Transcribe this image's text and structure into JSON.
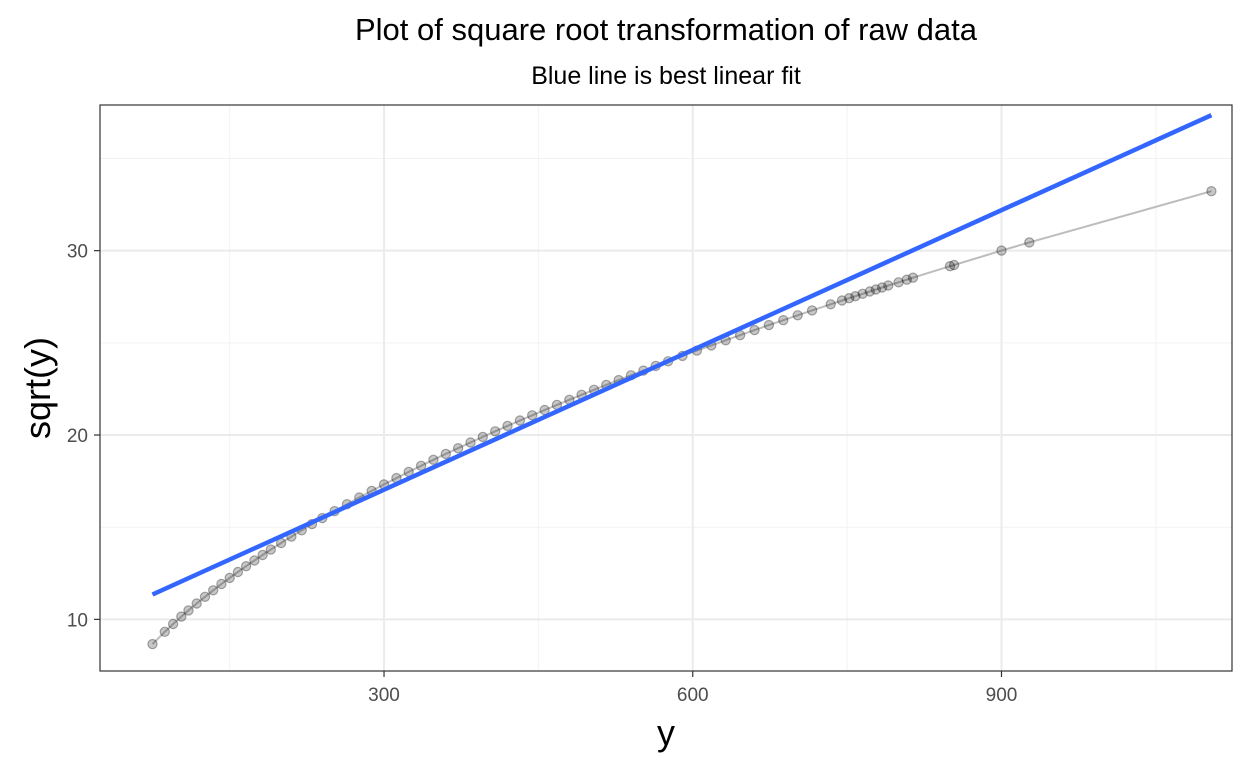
{
  "chart_data": {
    "type": "scatter",
    "title": "Plot of square root transformation of raw data",
    "subtitle": "Blue line is best linear fit",
    "xlabel": "y",
    "ylabel": "sqrt(y)",
    "xlim": [
      24,
      1124
    ],
    "ylim": [
      7.2,
      37.9
    ],
    "x_ticks": [
      300,
      600,
      900
    ],
    "x_tick_labels": [
      "300",
      "600",
      "900"
    ],
    "x_minor_ticks": [
      150,
      450,
      750,
      1050
    ],
    "y_ticks": [
      10,
      20,
      30
    ],
    "y_tick_labels": [
      "10",
      "20",
      "30"
    ],
    "y_minor_ticks": [
      15,
      25,
      35
    ],
    "grid": true,
    "series": [
      {
        "kind": "points_connected",
        "transform": "sqrt",
        "x": [
          75,
          87,
          95,
          103,
          110,
          118,
          126,
          134,
          142,
          150,
          158,
          166,
          174,
          182,
          190,
          200,
          210,
          220,
          230,
          240,
          252,
          264,
          276,
          288,
          300,
          312,
          324,
          336,
          348,
          360,
          372,
          384,
          396,
          408,
          420,
          432,
          444,
          456,
          468,
          480,
          492,
          504,
          516,
          528,
          540,
          552,
          564,
          576,
          590,
          604,
          618,
          632,
          646,
          660,
          674,
          688,
          702,
          716,
          734,
          745,
          752,
          758,
          765,
          772,
          778,
          784,
          790,
          800,
          808,
          814,
          850,
          854,
          900,
          927,
          1104
        ],
        "color": "#000000",
        "opacity": 0.22
      },
      {
        "kind": "fit_line",
        "x": [
          75,
          1104
        ],
        "y": [
          11.35,
          37.35
        ],
        "color": "#3366ff"
      }
    ]
  }
}
